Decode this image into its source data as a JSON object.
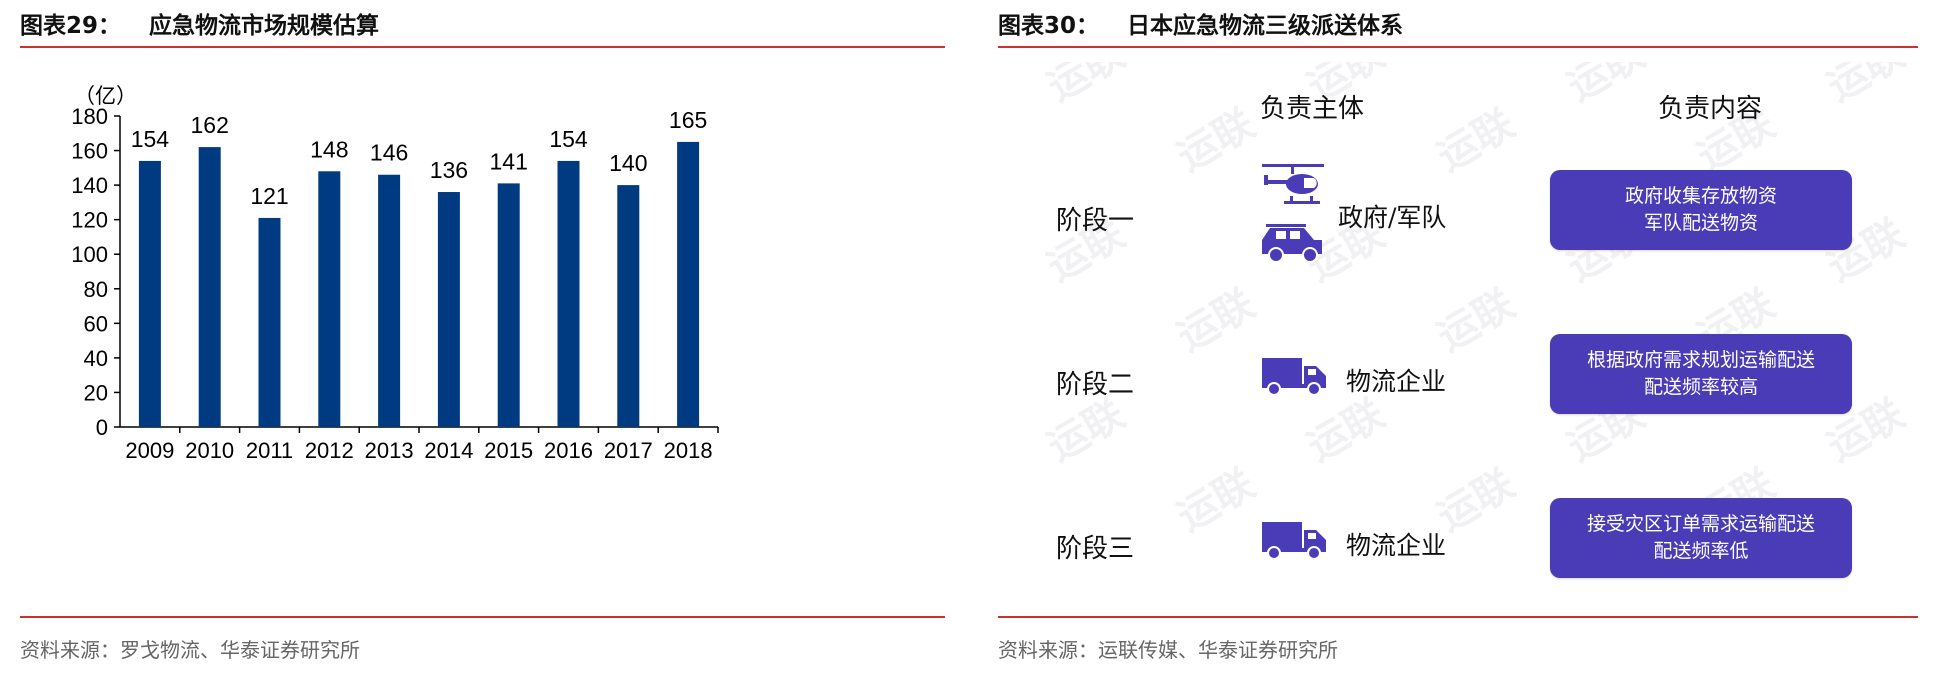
{
  "left_panel": {
    "figure_label": "图表29：",
    "title": "应急物流市场规模估算",
    "source": "资料来源：罗戈物流、华泰证券研究所"
  },
  "right_panel": {
    "figure_label": "图表30：",
    "title": "日本应急物流三级派送体系",
    "source": "资料来源：运联传媒、华泰证券研究所",
    "headers": {
      "entity": "负责主体",
      "content": "负责内容"
    },
    "watermark": "运联",
    "stages": [
      {
        "stage": "阶段一",
        "entity": "政府/军队",
        "icons": [
          "helicopter-icon",
          "jeep-icon"
        ],
        "content": [
          "政府收集存放物资",
          "军队配送物资"
        ]
      },
      {
        "stage": "阶段二",
        "entity": "物流企业",
        "icons": [
          "truck-icon"
        ],
        "content": [
          "根据政府需求规划运输配送",
          "配送频率较高"
        ]
      },
      {
        "stage": "阶段三",
        "entity": "物流企业",
        "icons": [
          "truck-icon"
        ],
        "content": [
          "接受灾区订单需求运输配送",
          "配送频率低"
        ]
      }
    ],
    "colors": {
      "icon": "#4a3bb7",
      "box": "#4a3bb7",
      "box_text": "#ffffff"
    }
  },
  "chart_data": {
    "type": "bar",
    "title": "应急物流市场规模估算",
    "unit_label": "（亿）",
    "categories": [
      "2009",
      "2010",
      "2011",
      "2012",
      "2013",
      "2014",
      "2015",
      "2016",
      "2017",
      "2018"
    ],
    "values": [
      154,
      162,
      121,
      148,
      146,
      136,
      141,
      154,
      140,
      165
    ],
    "ylim": [
      0,
      180
    ],
    "yticks": [
      0,
      20,
      40,
      60,
      80,
      100,
      120,
      140,
      160,
      180
    ],
    "grid": false,
    "legend": "none",
    "bar_color": "#003a80"
  }
}
